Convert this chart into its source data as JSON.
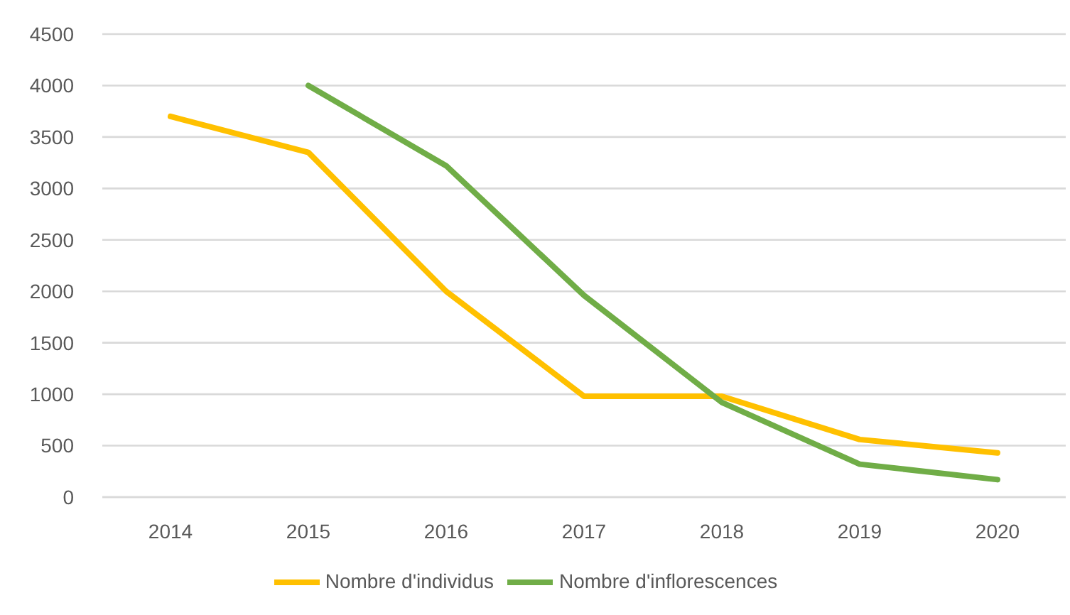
{
  "chart_data": {
    "type": "line",
    "categories": [
      "2014",
      "2015",
      "2016",
      "2017",
      "2018",
      "2019",
      "2020"
    ],
    "series": [
      {
        "name": "Nombre d'individus",
        "color": "#ffc000",
        "values": [
          3700,
          3350,
          2000,
          980,
          980,
          560,
          430
        ]
      },
      {
        "name": "Nombre d'inflorescences",
        "color": "#70ad47",
        "values": [
          null,
          4000,
          3220,
          1960,
          920,
          320,
          170
        ]
      }
    ],
    "ylim": [
      0,
      4500
    ],
    "yticks": [
      0,
      500,
      1000,
      1500,
      2000,
      2500,
      3000,
      3500,
      4000,
      4500
    ],
    "grid": "y",
    "legend": "bottom",
    "marker": "none",
    "line_style": "solid"
  }
}
